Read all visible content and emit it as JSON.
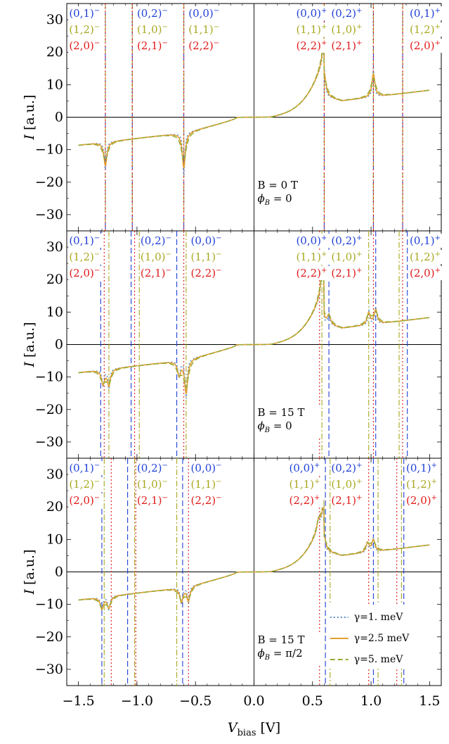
{
  "chart_data": {
    "type": "line",
    "xlabel_main": "V",
    "xlabel_sub": "bias",
    "xlabel_unit": " [V]",
    "ylabel_var": "I",
    "ylabel_unit": " [a.u.]",
    "xlim": [
      -1.6,
      1.6
    ],
    "ylim": [
      -35,
      35
    ],
    "xticks": [
      -1.5,
      -1.0,
      -0.5,
      0.0,
      0.5,
      1.0,
      1.5
    ],
    "xtick_labels": [
      "−1.5",
      "−1.0",
      "−0.5",
      "0.0",
      "0.5",
      "1.0",
      "1.5"
    ],
    "yticks": [
      30,
      20,
      10,
      0,
      -10,
      -20,
      -30
    ],
    "ytick_labels": [
      "30",
      "20",
      "10",
      "0",
      "−10",
      "−20",
      "−30"
    ],
    "series": [
      {
        "name": "γ=1. meV",
        "color": "#5b8fc9",
        "dash": "dotted"
      },
      {
        "name": "γ=2.5 meV",
        "color": "#e0a030",
        "dash": "solid"
      },
      {
        "name": "γ=5. meV",
        "color": "#9aaa35",
        "dash": "dashed"
      }
    ],
    "line_colors": {
      "blue": "#1f3fd6",
      "olive": "#a8a820",
      "red": "#e01818"
    },
    "panels": [
      {
        "info": [
          "B = 0 T",
          "ϕ",
          "B",
          " = 0"
        ],
        "resonances": [
          {
            "x": -0.6,
            "A": -15,
            "w": 0.012
          },
          {
            "x": -1.27,
            "A": -10,
            "w": 0.012
          },
          {
            "x": 0.6,
            "A": 10,
            "w": 0.012
          },
          {
            "x": 1.02,
            "A": 10,
            "w": 0.012
          }
        ],
        "vlines": [
          {
            "x": -1.27,
            "color": "blue"
          },
          {
            "x": -1.27,
            "color": "olive"
          },
          {
            "x": -1.27,
            "color": "red"
          },
          {
            "x": -1.04,
            "color": "blue"
          },
          {
            "x": -1.04,
            "color": "olive"
          },
          {
            "x": -1.04,
            "color": "red"
          },
          {
            "x": -0.6,
            "color": "blue"
          },
          {
            "x": -0.6,
            "color": "olive"
          },
          {
            "x": -0.6,
            "color": "red"
          },
          {
            "x": 0.6,
            "color": "blue"
          },
          {
            "x": 0.6,
            "color": "olive"
          },
          {
            "x": 0.6,
            "color": "red"
          },
          {
            "x": 1.02,
            "color": "blue"
          },
          {
            "x": 1.02,
            "color": "olive"
          },
          {
            "x": 1.02,
            "color": "red"
          },
          {
            "x": 1.27,
            "color": "blue"
          },
          {
            "x": 1.27,
            "color": "olive"
          },
          {
            "x": 1.27,
            "color": "red"
          }
        ],
        "labels": [
          {
            "x": -1.58,
            "lines": [
              [
                "(0,1)",
                "−"
              ],
              [
                "(1,2)",
                "−"
              ],
              [
                "(2,0)",
                "−"
              ]
            ]
          },
          {
            "x": -1.0,
            "lines": [
              [
                "(0,2)",
                "−"
              ],
              [
                "(1,0)",
                "−"
              ],
              [
                "(2,1)",
                "−"
              ]
            ]
          },
          {
            "x": -0.56,
            "lines": [
              [
                "(0,0)",
                "−"
              ],
              [
                "(1,1)",
                "−"
              ],
              [
                "(2,2)",
                "−"
              ]
            ]
          },
          {
            "x": 0.36,
            "lines": [
              [
                "(0,0)",
                "+"
              ],
              [
                "(1,1)",
                "+"
              ],
              [
                "(2,2)",
                "+"
              ]
            ]
          },
          {
            "x": 0.66,
            "lines": [
              [
                "(0,2)",
                "+"
              ],
              [
                "(1,0)",
                "+"
              ],
              [
                "(2,1)",
                "+"
              ]
            ]
          },
          {
            "x": 1.33,
            "lines": [
              [
                "(0,1)",
                "+"
              ],
              [
                "(1,2)",
                "+"
              ],
              [
                "(2,0)",
                "+"
              ]
            ]
          }
        ]
      },
      {
        "info": [
          "B = 15 T",
          "ϕ",
          "B",
          " = 0"
        ],
        "resonances": [
          {
            "x": -0.64,
            "A": -6,
            "w": 0.012
          },
          {
            "x": -0.58,
            "A": -14,
            "w": 0.012
          },
          {
            "x": -1.29,
            "A": -6,
            "w": 0.012
          },
          {
            "x": -1.24,
            "A": -7,
            "w": 0.012
          },
          {
            "x": 0.58,
            "A": 8,
            "w": 0.012
          },
          {
            "x": 0.64,
            "A": 4,
            "w": 0.012
          },
          {
            "x": 0.98,
            "A": 5,
            "w": 0.012
          },
          {
            "x": 1.04,
            "A": 6,
            "w": 0.012
          }
        ],
        "vlines": [
          {
            "x": -1.31,
            "color": "blue"
          },
          {
            "x": -1.24,
            "color": "olive"
          },
          {
            "x": -1.28,
            "color": "red"
          },
          {
            "x": -1.05,
            "color": "blue"
          },
          {
            "x": -0.98,
            "color": "olive"
          },
          {
            "x": -1.02,
            "color": "red"
          },
          {
            "x": -0.66,
            "color": "blue"
          },
          {
            "x": -0.58,
            "color": "olive"
          },
          {
            "x": -0.6,
            "color": "red"
          },
          {
            "x": 0.64,
            "color": "blue"
          },
          {
            "x": 0.58,
            "color": "olive"
          },
          {
            "x": 0.56,
            "color": "red"
          },
          {
            "x": 1.04,
            "color": "blue"
          },
          {
            "x": 0.98,
            "color": "olive"
          },
          {
            "x": 1.02,
            "color": "red"
          },
          {
            "x": 1.31,
            "color": "blue"
          },
          {
            "x": 1.24,
            "color": "olive"
          },
          {
            "x": 1.27,
            "color": "red"
          }
        ],
        "labels": [
          {
            "x": -1.58,
            "lines": [
              [
                "(0,1)",
                "−"
              ],
              [
                "(1,2)",
                "−"
              ],
              [
                "(2,0)",
                "−"
              ]
            ]
          },
          {
            "x": -0.97,
            "lines": [
              [
                "(0,2)",
                "−"
              ],
              [
                "(1,0)",
                "−"
              ],
              [
                "(2,1)",
                "−"
              ]
            ]
          },
          {
            "x": -0.54,
            "lines": [
              [
                "(0,0)",
                "−"
              ],
              [
                "(1,1)",
                "−"
              ],
              [
                "(2,2)",
                "−"
              ]
            ]
          },
          {
            "x": 0.36,
            "lines": [
              [
                "(0,0)",
                "+"
              ],
              [
                "(1,1)",
                "+"
              ],
              [
                "(2,2)",
                "+"
              ]
            ]
          },
          {
            "x": 0.66,
            "lines": [
              [
                "(0,2)",
                "+"
              ],
              [
                "(1,0)",
                "+"
              ],
              [
                "(2,1)",
                "+"
              ]
            ]
          },
          {
            "x": 1.33,
            "lines": [
              [
                "(0,1)",
                "+"
              ],
              [
                "(1,2)",
                "+"
              ],
              [
                "(2,0)",
                "+"
              ]
            ]
          }
        ]
      },
      {
        "info": [
          "B = 15 T",
          "ϕ",
          "B",
          " = π/2"
        ],
        "resonances": [
          {
            "x": -1.3,
            "A": -5,
            "w": 0.012
          },
          {
            "x": -1.24,
            "A": -5,
            "w": 0.012
          },
          {
            "x": -0.62,
            "A": -6,
            "w": 0.012
          },
          {
            "x": -0.56,
            "A": -6,
            "w": 0.012
          },
          {
            "x": 0.55,
            "A": 4,
            "w": 0.012
          },
          {
            "x": 0.6,
            "A": 6,
            "w": 0.012
          },
          {
            "x": 0.97,
            "A": 4,
            "w": 0.012
          },
          {
            "x": 1.02,
            "A": 5,
            "w": 0.012
          }
        ],
        "vlines": [
          {
            "x": -1.3,
            "color": "blue"
          },
          {
            "x": -1.28,
            "color": "olive"
          },
          {
            "x": -1.22,
            "color": "red"
          },
          {
            "x": -1.08,
            "color": "blue"
          },
          {
            "x": -1.02,
            "color": "olive"
          },
          {
            "x": -1.01,
            "color": "red"
          },
          {
            "x": -0.61,
            "color": "blue"
          },
          {
            "x": -0.66,
            "color": "olive"
          },
          {
            "x": -0.56,
            "color": "red"
          },
          {
            "x": 0.61,
            "color": "blue"
          },
          {
            "x": 0.65,
            "color": "olive"
          },
          {
            "x": 0.56,
            "color": "red"
          },
          {
            "x": 1.02,
            "color": "blue"
          },
          {
            "x": 1.06,
            "color": "olive"
          },
          {
            "x": 0.98,
            "color": "red"
          },
          {
            "x": 1.28,
            "color": "blue"
          },
          {
            "x": 1.26,
            "color": "olive"
          },
          {
            "x": 1.22,
            "color": "red"
          }
        ],
        "labels": [
          {
            "x": -1.58,
            "lines": [
              [
                "(0,1)",
                "−"
              ],
              [
                "(1,2)",
                "−"
              ],
              [
                "(2,0)",
                "−"
              ]
            ]
          },
          {
            "x": -1.0,
            "lines": [
              [
                "(0,2)",
                "−"
              ],
              [
                "(1,0)",
                "−"
              ],
              [
                "(2,1)",
                "−"
              ]
            ]
          },
          {
            "x": -0.54,
            "lines": [
              [
                "(0,0)",
                "−"
              ],
              [
                "(1,1)",
                "−"
              ],
              [
                "(2,2)",
                "−"
              ]
            ]
          },
          {
            "x": 0.3,
            "lines": [
              [
                "(0,0)",
                "+"
              ],
              [
                "(1,1)",
                "+"
              ],
              [
                "(2,2)",
                "+"
              ]
            ]
          },
          {
            "x": 0.66,
            "lines": [
              [
                "(0,2)",
                "+"
              ],
              [
                "(1,0)",
                "+"
              ],
              [
                "(2,1)",
                "+"
              ]
            ]
          },
          {
            "x": 1.3,
            "lines": [
              [
                "(0,1)",
                "+"
              ],
              [
                "(1,2)",
                "+"
              ],
              [
                "(2,0)",
                "+"
              ]
            ]
          }
        ],
        "legend": true
      }
    ]
  }
}
